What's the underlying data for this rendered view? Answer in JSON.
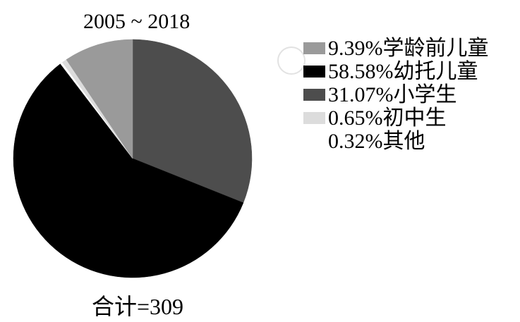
{
  "chart_data": {
    "type": "pie",
    "title": "2005 ~ 2018",
    "total_label": "合计=309",
    "slices": [
      {
        "label": "9.39%学龄前儿童",
        "value": 9.39,
        "color": "#9a9a9a"
      },
      {
        "label": "58.58%幼托儿童",
        "value": 58.58,
        "color": "#000000"
      },
      {
        "label": "31.07%小学生",
        "value": 31.07,
        "color": "#4d4d4d"
      },
      {
        "label": "0.65%初中生",
        "value": 0.65,
        "color": "#dcdcdc"
      },
      {
        "label": "0.32%其他",
        "value": 0.32,
        "color": "#ffffff"
      }
    ],
    "pie_order": [
      2,
      1,
      4,
      3,
      0
    ],
    "legend_position": "right"
  }
}
